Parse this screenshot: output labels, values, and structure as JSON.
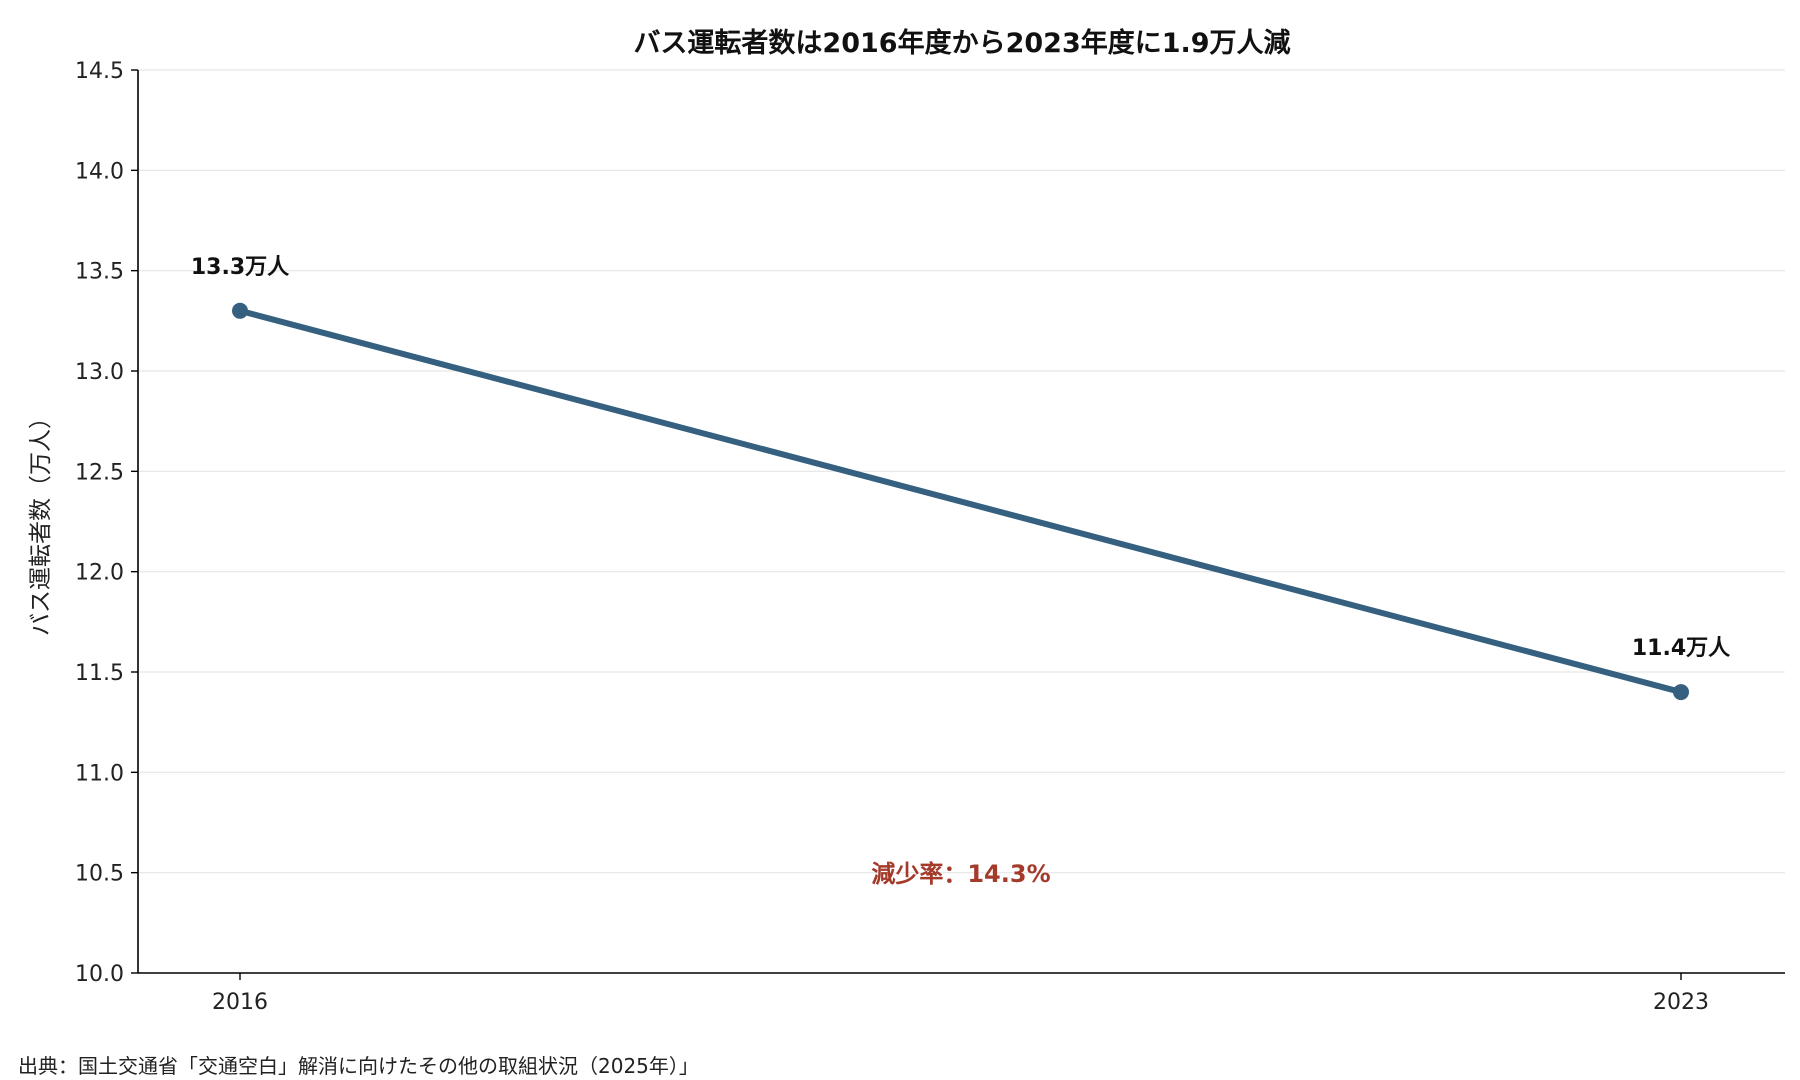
{
  "chart_data": {
    "type": "line",
    "title": "バス運転者数は2016年度から2023年度に1.9万人減",
    "xlabel": "",
    "ylabel": "バス運転者数（万人）",
    "categories": [
      "2016",
      "2023"
    ],
    "x": [
      2016,
      2023
    ],
    "series": [
      {
        "values": [
          13.3,
          11.4
        ],
        "data_labels": [
          "13.3万人",
          "11.4万人"
        ]
      }
    ],
    "ylim": [
      10.0,
      14.5
    ],
    "yticks": [
      10.0,
      10.5,
      11.0,
      11.5,
      12.0,
      12.5,
      13.0,
      13.5,
      14.0,
      14.5
    ],
    "ytick_labels": [
      "10.0",
      "10.5",
      "11.0",
      "11.5",
      "12.0",
      "12.5",
      "13.0",
      "13.5",
      "14.0",
      "14.5"
    ],
    "grid": "horizontal",
    "legend": "none",
    "annotation": "減少率：14.3%",
    "line_color": "#35607f",
    "annotation_color": "#a33a2a",
    "grid_color": "#e6e6e6"
  },
  "source": "出典：国土交通省「交通空白」解消に向けたその他の取組状況（2025年）」"
}
